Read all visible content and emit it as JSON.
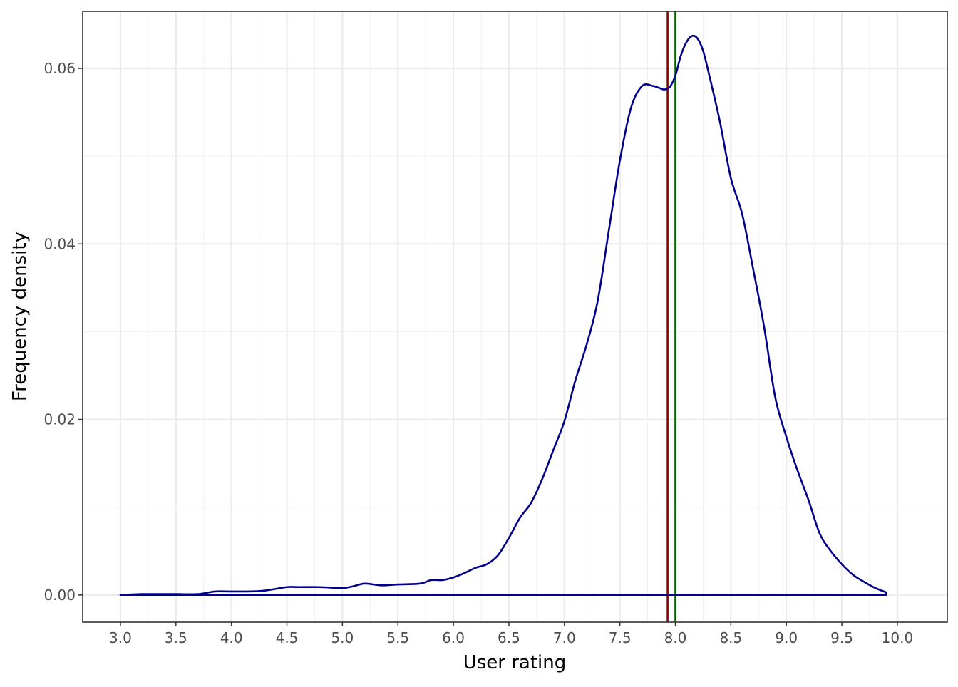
{
  "chart_data": {
    "type": "line",
    "xlabel": "User rating",
    "ylabel": "Frequency density",
    "xlim": [
      2.66,
      10.45
    ],
    "ylim": [
      -0.0031,
      0.0665
    ],
    "x_ticks": [
      3.0,
      3.5,
      4.0,
      4.5,
      5.0,
      5.5,
      6.0,
      6.5,
      7.0,
      7.5,
      8.0,
      8.5,
      9.0,
      9.5,
      10.0
    ],
    "x_tick_labels": [
      "3.0",
      "3.5",
      "4.0",
      "4.5",
      "5.0",
      "5.5",
      "6.0",
      "6.5",
      "7.0",
      "7.5",
      "8.0",
      "8.5",
      "9.0",
      "9.5",
      "10.0"
    ],
    "y_ticks": [
      0.0,
      0.02,
      0.04,
      0.06
    ],
    "y_tick_labels": [
      "0.00",
      "0.02",
      "0.04",
      "0.06"
    ],
    "grid": true,
    "series": [
      {
        "color": "#00008b",
        "closed_to_baseline": true,
        "x": [
          3.0,
          3.2,
          3.5,
          3.7,
          3.85,
          4.0,
          4.15,
          4.3,
          4.5,
          4.6,
          4.8,
          5.0,
          5.1,
          5.2,
          5.35,
          5.5,
          5.7,
          5.8,
          5.9,
          6.0,
          6.1,
          6.2,
          6.3,
          6.4,
          6.5,
          6.6,
          6.7,
          6.8,
          6.9,
          7.0,
          7.1,
          7.2,
          7.3,
          7.4,
          7.5,
          7.6,
          7.7,
          7.8,
          7.85,
          7.9,
          7.95,
          8.0,
          8.05,
          8.1,
          8.15,
          8.2,
          8.25,
          8.3,
          8.4,
          8.5,
          8.6,
          8.7,
          8.8,
          8.9,
          9.0,
          9.1,
          9.2,
          9.3,
          9.4,
          9.5,
          9.6,
          9.7,
          9.8,
          9.9
        ],
        "y": [
          0.0,
          0.0001,
          0.0001,
          0.0001,
          0.0004,
          0.0004,
          0.0004,
          0.0005,
          0.0009,
          0.0009,
          0.0009,
          0.0008,
          0.001,
          0.0013,
          0.0011,
          0.0012,
          0.0013,
          0.0017,
          0.0017,
          0.002,
          0.0025,
          0.0031,
          0.0035,
          0.0045,
          0.0065,
          0.0088,
          0.0105,
          0.0132,
          0.0165,
          0.0198,
          0.0245,
          0.0285,
          0.0335,
          0.0415,
          0.0495,
          0.0555,
          0.058,
          0.058,
          0.0578,
          0.0576,
          0.0579,
          0.0592,
          0.0615,
          0.063,
          0.0637,
          0.0634,
          0.062,
          0.0595,
          0.054,
          0.0475,
          0.0435,
          0.0372,
          0.0305,
          0.0225,
          0.018,
          0.0142,
          0.0108,
          0.007,
          0.005,
          0.0035,
          0.0023,
          0.0015,
          0.0008,
          0.0003
        ]
      }
    ],
    "reference_lines": [
      {
        "axis": "x",
        "value": 7.93,
        "color": "#8b0000"
      },
      {
        "axis": "x",
        "value": 8.0,
        "color": "#006400"
      }
    ]
  }
}
